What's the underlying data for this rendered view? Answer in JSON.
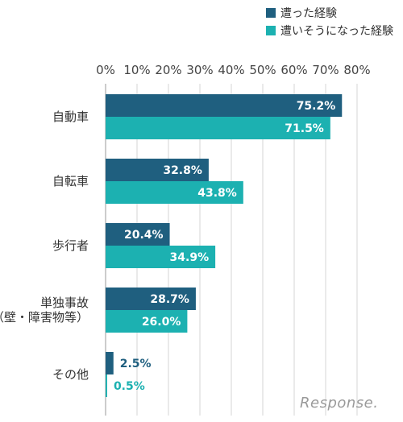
{
  "chart_data": {
    "type": "bar",
    "orientation": "horizontal",
    "categories": [
      [
        "自動車"
      ],
      [
        "自転車"
      ],
      [
        "歩行者"
      ],
      [
        "単独事故",
        "（壁・障害物等）"
      ],
      [
        "その他"
      ]
    ],
    "series": [
      {
        "name": "遭った経験",
        "values": [
          75.2,
          32.8,
          20.4,
          28.7,
          2.5
        ],
        "labels": [
          "75.2%",
          "32.8%",
          "20.4%",
          "28.7%",
          "2.5%"
        ],
        "color": "#1f5f7f"
      },
      {
        "name": "遭いそうになった経験",
        "values": [
          71.5,
          43.8,
          34.9,
          26.0,
          0.5
        ],
        "labels": [
          "71.5%",
          "43.8%",
          "34.9%",
          "26.0%",
          "0.5%"
        ],
        "color": "#1cb1b1"
      }
    ],
    "xlim": [
      0,
      80
    ],
    "xticks": [
      "0%",
      "10%",
      "20%",
      "30%",
      "40%",
      "50%",
      "60%",
      "70%",
      "80%"
    ],
    "legend_position": "top-right",
    "grid": true
  },
  "watermark": "Response."
}
